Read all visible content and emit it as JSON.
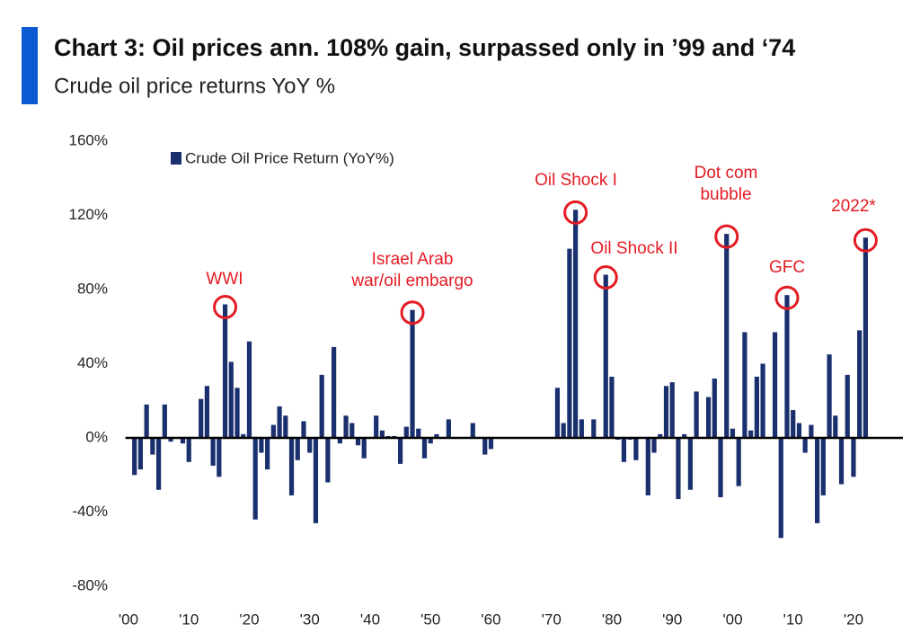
{
  "chart_data": {
    "type": "bar",
    "title": "Chart 3: Oil prices ann. 108% gain, surpassed only in ’99 and ‘74",
    "subtitle": "Crude oil price returns YoY %",
    "categories": [
      "'00",
      null,
      null,
      null,
      null,
      null,
      null,
      null,
      null,
      null,
      "'10",
      null,
      null,
      null,
      null,
      null,
      null,
      null,
      null,
      null,
      "'20",
      null,
      null,
      null,
      null,
      null,
      null,
      null,
      null,
      null,
      "'30",
      null,
      null,
      null,
      null,
      null,
      null,
      null,
      null,
      null,
      "'40",
      null,
      null,
      null,
      null,
      null,
      null,
      null,
      null,
      null,
      "'50",
      null,
      null,
      null,
      null,
      null,
      null,
      null,
      null,
      null,
      "'60",
      null,
      null,
      null,
      null,
      null,
      null,
      null,
      null,
      null,
      "'70",
      null,
      null,
      null,
      null,
      null,
      null,
      null,
      null,
      null,
      "'80",
      null,
      null,
      null,
      null,
      null,
      null,
      null,
      null,
      null,
      "'90",
      null,
      null,
      null,
      null,
      null,
      null,
      null,
      null,
      null,
      "'00",
      null,
      null,
      null,
      null,
      null,
      null,
      null,
      null,
      null,
      "'10",
      null,
      null,
      null,
      null,
      null,
      null,
      null,
      null,
      null,
      "'20",
      null,
      null
    ],
    "series": [
      {
        "name": "Crude Oil Price Return (YoY%)",
        "color": "#1a2f6e",
        "values": [
          0,
          -20,
          -17,
          18,
          -9,
          -28,
          18,
          -2,
          0,
          -3,
          -13,
          0,
          21,
          28,
          -15,
          -21,
          72,
          41,
          27,
          2,
          52,
          -44,
          -8,
          -17,
          7,
          17,
          12,
          -31,
          -12,
          9,
          -8,
          -46,
          34,
          -24,
          49,
          -3,
          12,
          8,
          -4,
          -11,
          0,
          12,
          4,
          1,
          1,
          -14,
          6,
          69,
          5,
          -11,
          -3,
          2,
          0,
          10,
          0,
          0,
          0,
          8,
          0,
          -9,
          -6,
          0,
          0,
          0,
          0,
          0,
          0,
          0,
          0,
          0,
          0,
          27,
          8,
          102,
          123,
          10,
          0,
          10,
          0,
          88,
          33,
          -1,
          -13,
          -1,
          -12,
          0,
          -31,
          -8,
          2,
          28,
          30,
          -33,
          2,
          -28,
          25,
          0,
          22,
          32,
          -32,
          110,
          5,
          -26,
          57,
          4,
          33,
          40,
          0,
          57,
          -54,
          77,
          15,
          8,
          -8,
          7,
          -46,
          -31,
          45,
          12,
          -25,
          34,
          -21,
          58,
          108
        ]
      }
    ],
    "ylim": [
      -80,
      160
    ],
    "yticks": [
      {
        "value": -80,
        "label": "-80%"
      },
      {
        "value": -40,
        "label": "-40%"
      },
      {
        "value": 0,
        "label": "0%"
      },
      {
        "value": 40,
        "label": "40%"
      },
      {
        "value": 80,
        "label": "80%"
      },
      {
        "value": 120,
        "label": "120%"
      },
      {
        "value": 160,
        "label": "160%"
      }
    ],
    "annotations": [
      [
        "WWI"
      ],
      [
        "Israel Arab",
        "war/oil embargo"
      ],
      [
        "Oil Shock I"
      ],
      [
        "Oil Shock II"
      ],
      [
        "Dot com",
        "bubble"
      ],
      [
        "GFC"
      ],
      [
        "2022*"
      ]
    ],
    "legend": "top-left"
  }
}
